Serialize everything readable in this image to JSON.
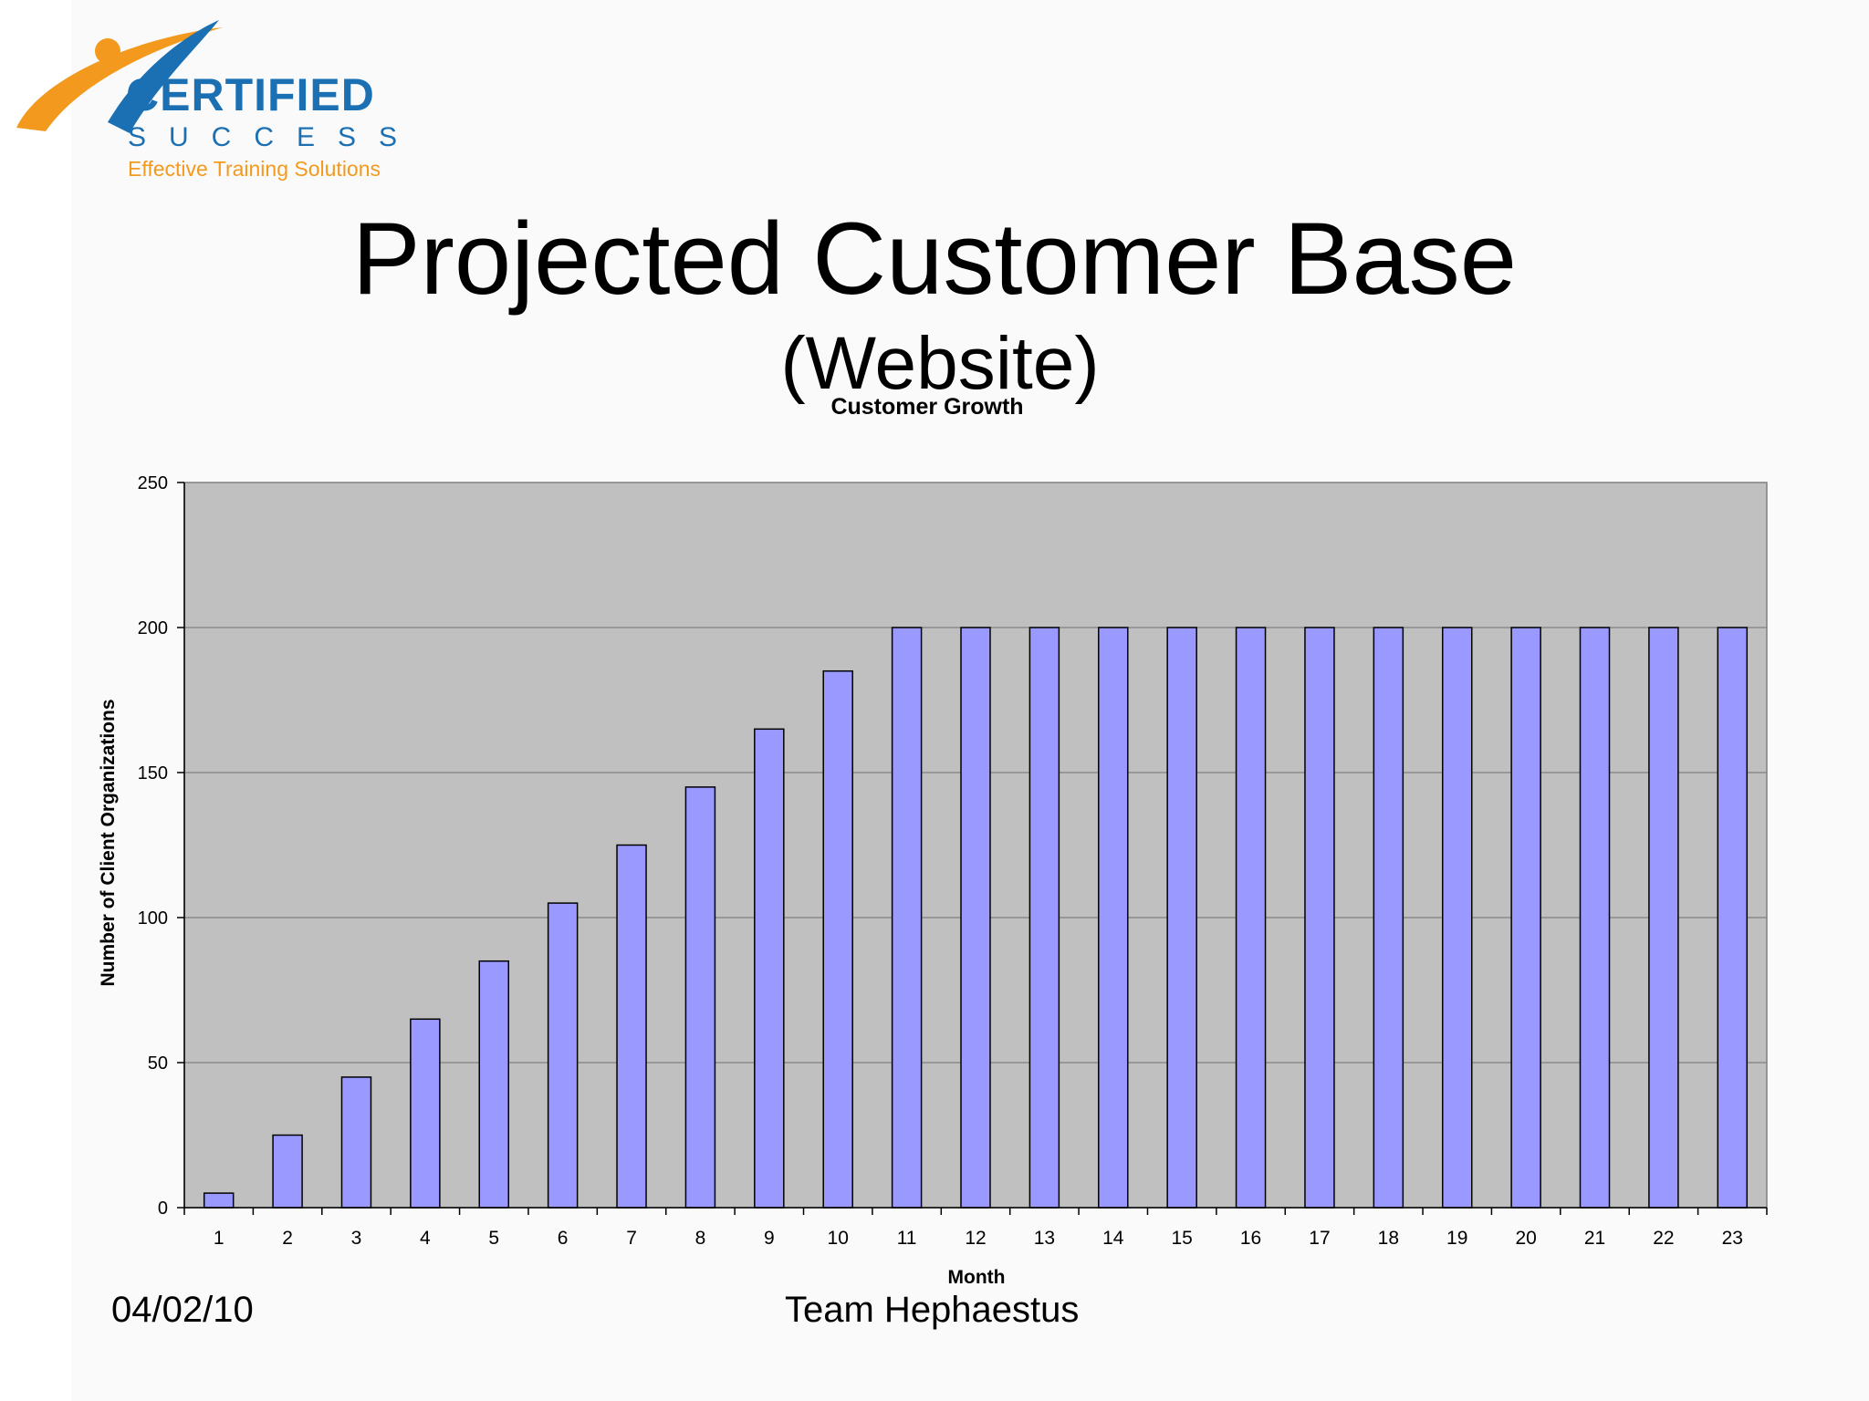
{
  "logo": {
    "word": "CERTIFIED",
    "sub": "SUCCESS",
    "tagline": "Effective Training Solutions",
    "colors": {
      "blue": "#1b6fb3",
      "orange": "#f39a1e"
    }
  },
  "slide": {
    "title": "Projected Customer Base",
    "subtitle": "(Website)"
  },
  "footer": {
    "date": "04/02/10",
    "team": "Team Hephaestus"
  },
  "chart_data": {
    "type": "bar",
    "title": "Customer Growth",
    "xlabel": "Month",
    "ylabel": "Number of Client Organizations",
    "categories": [
      "1",
      "2",
      "3",
      "4",
      "5",
      "6",
      "7",
      "8",
      "9",
      "10",
      "11",
      "12",
      "13",
      "14",
      "15",
      "16",
      "17",
      "18",
      "19",
      "20",
      "21",
      "22",
      "23"
    ],
    "values": [
      5,
      25,
      45,
      65,
      85,
      105,
      125,
      145,
      165,
      185,
      200,
      200,
      200,
      200,
      200,
      200,
      200,
      200,
      200,
      200,
      200,
      200,
      200
    ],
    "ylim": [
      0,
      250
    ],
    "yticks": [
      "0",
      "50",
      "100",
      "150",
      "200",
      "250"
    ],
    "grid": true,
    "legend": "none",
    "colors": {
      "bar": "#9999ff",
      "plot_background": "#c0c0c0",
      "gridline": "#808080"
    }
  }
}
